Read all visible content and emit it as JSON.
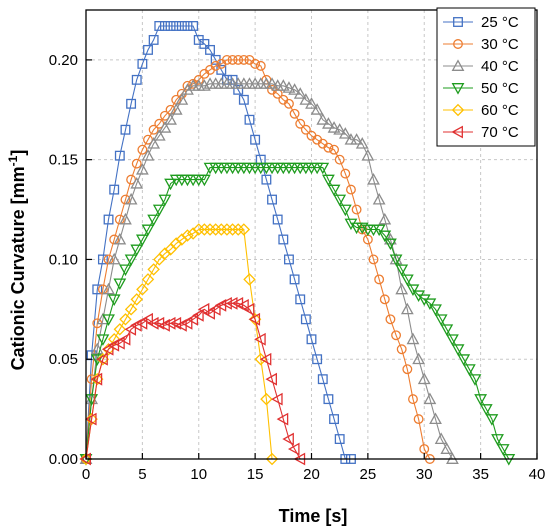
{
  "chart_data": {
    "type": "line",
    "xlabel": "Time [s]",
    "ylabel_main": "Cationic Curvature [mm",
    "ylabel_sup": "-1",
    "ylabel_end": "]",
    "xlim": [
      0,
      40
    ],
    "ylim": [
      0,
      0.225
    ],
    "xticks": [
      0,
      5,
      10,
      15,
      20,
      25,
      30,
      35,
      40
    ],
    "xtick_labels": [
      "0",
      "5",
      "10",
      "15",
      "20",
      "25",
      "30",
      "35",
      "40"
    ],
    "yticks": [
      0.0,
      0.05,
      0.1,
      0.15,
      0.2
    ],
    "ytick_labels": [
      "0.00",
      "0.05",
      "0.10",
      "0.15",
      "0.20"
    ],
    "grid": true,
    "legend_position": "top-right",
    "series": [
      {
        "name": "25 °C",
        "color": "#4472c4",
        "marker": "square",
        "x": [
          0,
          0.5,
          1,
          1.5,
          2,
          2.5,
          3,
          3.5,
          4,
          4.5,
          5,
          5.5,
          6,
          6.5,
          7,
          7.5,
          8,
          8.5,
          9,
          9.5,
          10,
          10.5,
          11,
          11.5,
          12,
          12.5,
          13,
          13.5,
          14,
          14.5,
          15,
          15.5,
          16,
          16.5,
          17,
          17.5,
          18,
          18.5,
          19,
          19.5,
          20,
          20.5,
          21,
          21.5,
          22,
          22.5,
          23,
          23.5
        ],
        "y": [
          0,
          0.052,
          0.085,
          0.1,
          0.12,
          0.135,
          0.152,
          0.165,
          0.178,
          0.19,
          0.198,
          0.205,
          0.21,
          0.217,
          0.217,
          0.217,
          0.217,
          0.217,
          0.217,
          0.217,
          0.21,
          0.208,
          0.205,
          0.2,
          0.195,
          0.19,
          0.19,
          0.185,
          0.18,
          0.17,
          0.16,
          0.15,
          0.14,
          0.13,
          0.12,
          0.11,
          0.1,
          0.09,
          0.08,
          0.07,
          0.06,
          0.05,
          0.04,
          0.03,
          0.02,
          0.01,
          0.0,
          0.0
        ]
      },
      {
        "name": "30 °C",
        "color": "#ed7d31",
        "marker": "circle",
        "x": [
          0,
          0.5,
          1,
          1.5,
          2,
          2.5,
          3,
          3.5,
          4,
          4.5,
          5,
          5.5,
          6,
          6.5,
          7,
          7.5,
          8,
          8.5,
          9,
          9.5,
          10,
          10.5,
          11,
          11.5,
          12,
          12.5,
          13,
          13.5,
          14,
          14.5,
          15,
          15.5,
          16,
          16.5,
          17,
          17.5,
          18,
          18.5,
          19,
          19.5,
          20,
          20.5,
          21,
          21.5,
          22,
          22.5,
          23,
          23.5,
          24,
          24.5,
          25,
          25.5,
          26,
          26.5,
          27,
          27.5,
          28,
          28.5,
          29,
          29.5,
          30,
          30.5
        ],
        "y": [
          0,
          0.04,
          0.068,
          0.085,
          0.1,
          0.11,
          0.12,
          0.13,
          0.14,
          0.148,
          0.155,
          0.16,
          0.165,
          0.168,
          0.172,
          0.175,
          0.18,
          0.183,
          0.187,
          0.188,
          0.19,
          0.193,
          0.195,
          0.197,
          0.198,
          0.2,
          0.2,
          0.2,
          0.2,
          0.2,
          0.198,
          0.197,
          0.19,
          0.185,
          0.183,
          0.18,
          0.178,
          0.173,
          0.168,
          0.165,
          0.162,
          0.16,
          0.158,
          0.156,
          0.155,
          0.15,
          0.143,
          0.135,
          0.125,
          0.115,
          0.11,
          0.1,
          0.09,
          0.08,
          0.07,
          0.062,
          0.055,
          0.045,
          0.03,
          0.02,
          0.005,
          0.0
        ]
      },
      {
        "name": "40 °C",
        "color": "#8c8c8c",
        "marker": "triangle-up",
        "x": [
          0,
          0.5,
          1,
          1.5,
          2,
          2.5,
          3,
          3.5,
          4,
          4.5,
          5,
          5.5,
          6,
          6.5,
          7,
          7.5,
          8,
          8.5,
          9,
          9.5,
          10,
          10.5,
          11,
          11.5,
          12,
          12.5,
          13,
          13.5,
          14,
          14.5,
          15,
          15.5,
          16,
          16.5,
          17,
          17.5,
          18,
          18.5,
          19,
          19.5,
          20,
          20.5,
          21,
          21.5,
          22,
          22.5,
          23,
          23.5,
          24,
          24.5,
          25,
          25.5,
          26,
          26.5,
          27,
          27.5,
          28,
          28.5,
          29,
          29.5,
          30,
          30.5,
          31,
          31.5,
          32,
          32.5
        ],
        "y": [
          0,
          0.03,
          0.055,
          0.07,
          0.085,
          0.1,
          0.11,
          0.12,
          0.13,
          0.138,
          0.145,
          0.152,
          0.158,
          0.162,
          0.166,
          0.17,
          0.175,
          0.18,
          0.185,
          0.187,
          0.187,
          0.187,
          0.188,
          0.188,
          0.188,
          0.188,
          0.188,
          0.188,
          0.188,
          0.188,
          0.188,
          0.188,
          0.188,
          0.188,
          0.187,
          0.187,
          0.186,
          0.185,
          0.183,
          0.18,
          0.178,
          0.175,
          0.17,
          0.168,
          0.166,
          0.165,
          0.163,
          0.16,
          0.16,
          0.158,
          0.152,
          0.14,
          0.13,
          0.12,
          0.11,
          0.1,
          0.085,
          0.075,
          0.06,
          0.05,
          0.04,
          0.03,
          0.02,
          0.01,
          0.005,
          0.0
        ]
      },
      {
        "name": "50 °C",
        "color": "#1e9c1e",
        "marker": "triangle-down",
        "x": [
          0,
          0.5,
          1,
          1.5,
          2,
          2.5,
          3,
          3.5,
          4,
          4.5,
          5,
          5.5,
          6,
          6.5,
          7,
          7.5,
          8,
          8.5,
          9,
          9.5,
          10,
          10.5,
          11,
          11.5,
          12,
          12.5,
          13,
          13.5,
          14,
          14.5,
          15,
          15.5,
          16,
          16.5,
          17,
          17.5,
          18,
          18.5,
          19,
          19.5,
          20,
          20.5,
          21,
          21.5,
          22,
          22.5,
          23,
          23.5,
          24,
          24.5,
          25,
          25.5,
          26,
          26.5,
          27,
          27.5,
          28,
          28.5,
          29,
          29.5,
          30,
          30.5,
          31,
          31.5,
          32,
          32.5,
          33,
          33.5,
          34,
          34.5,
          35,
          35.5,
          36,
          36.5,
          37,
          37.5
        ],
        "y": [
          0,
          0.03,
          0.05,
          0.06,
          0.07,
          0.08,
          0.088,
          0.095,
          0.1,
          0.105,
          0.11,
          0.115,
          0.12,
          0.125,
          0.13,
          0.138,
          0.14,
          0.14,
          0.14,
          0.14,
          0.14,
          0.14,
          0.146,
          0.146,
          0.146,
          0.146,
          0.146,
          0.146,
          0.146,
          0.146,
          0.146,
          0.146,
          0.146,
          0.146,
          0.146,
          0.146,
          0.146,
          0.146,
          0.146,
          0.146,
          0.146,
          0.146,
          0.146,
          0.14,
          0.135,
          0.13,
          0.125,
          0.118,
          0.116,
          0.116,
          0.115,
          0.115,
          0.115,
          0.112,
          0.108,
          0.1,
          0.095,
          0.09,
          0.085,
          0.082,
          0.08,
          0.078,
          0.075,
          0.07,
          0.065,
          0.06,
          0.055,
          0.05,
          0.045,
          0.04,
          0.03,
          0.025,
          0.02,
          0.01,
          0.005,
          0.0
        ]
      },
      {
        "name": "60 °C",
        "color": "#ffc000",
        "marker": "diamond",
        "x": [
          0,
          0.5,
          1,
          1.5,
          2,
          2.5,
          3,
          3.5,
          4,
          4.5,
          5,
          5.5,
          6,
          6.5,
          7,
          7.5,
          8,
          8.5,
          9,
          9.5,
          10,
          10.5,
          11,
          11.5,
          12,
          12.5,
          13,
          13.5,
          14,
          14.5,
          15,
          15.5,
          16,
          16.5
        ],
        "y": [
          0,
          0.02,
          0.04,
          0.05,
          0.055,
          0.06,
          0.065,
          0.07,
          0.075,
          0.08,
          0.085,
          0.09,
          0.095,
          0.1,
          0.103,
          0.105,
          0.108,
          0.11,
          0.112,
          0.113,
          0.115,
          0.115,
          0.115,
          0.115,
          0.115,
          0.115,
          0.115,
          0.115,
          0.115,
          0.09,
          0.07,
          0.05,
          0.03,
          0.0
        ]
      },
      {
        "name": "70 °C",
        "color": "#e03131",
        "marker": "triangle-left",
        "x": [
          0,
          0.5,
          1,
          1.5,
          2,
          2.5,
          3,
          3.5,
          4,
          4.5,
          5,
          5.5,
          6,
          6.5,
          7,
          7.5,
          8,
          8.5,
          9,
          9.5,
          10,
          10.5,
          11,
          11.5,
          12,
          12.5,
          13,
          13.5,
          14,
          14.5,
          15,
          15.5,
          16,
          16.5,
          17,
          17.5,
          18,
          18.5,
          19
        ],
        "y": [
          0,
          0.02,
          0.04,
          0.05,
          0.055,
          0.057,
          0.058,
          0.06,
          0.065,
          0.067,
          0.068,
          0.07,
          0.068,
          0.068,
          0.067,
          0.068,
          0.068,
          0.067,
          0.068,
          0.07,
          0.072,
          0.075,
          0.073,
          0.075,
          0.077,
          0.078,
          0.078,
          0.078,
          0.077,
          0.075,
          0.07,
          0.06,
          0.05,
          0.04,
          0.03,
          0.02,
          0.01,
          0.005,
          0.0
        ]
      }
    ]
  }
}
